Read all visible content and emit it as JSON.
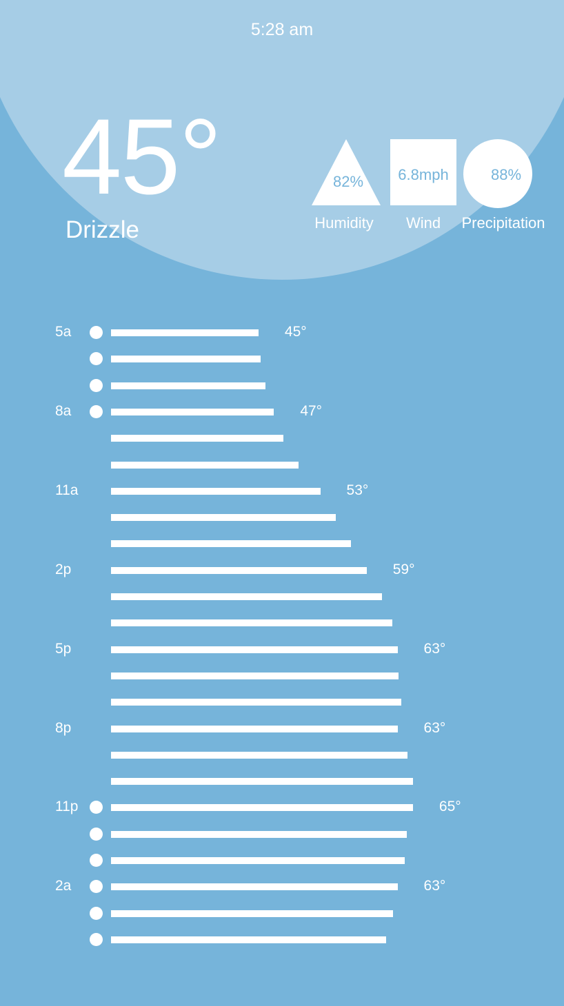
{
  "header": {
    "time": "5:28 am"
  },
  "current": {
    "temperature": "45°",
    "condition": "Drizzle"
  },
  "stats": {
    "humidity": {
      "value": "82%",
      "label": "Humidity",
      "shape": "triangle"
    },
    "wind": {
      "value": "6.8mph",
      "label": "Wind",
      "shape": "square"
    },
    "precipitation": {
      "value": "88%",
      "label": "Precipitation",
      "shape": "circle"
    }
  },
  "colors": {
    "background": "#76b4da",
    "arc": "#a6cde6",
    "foreground": "#ffffff"
  },
  "chart_data": {
    "type": "bar",
    "orientation": "horizontal",
    "temp_min": 25.9,
    "temp_max": 65.3,
    "hours": [
      {
        "hour": "5a",
        "temp": 45,
        "temp_label": "45°",
        "rain": true
      },
      {
        "hour": "",
        "temp": 45.3,
        "temp_label": "",
        "rain": true
      },
      {
        "hour": "",
        "temp": 45.9,
        "temp_label": "",
        "rain": true
      },
      {
        "hour": "8a",
        "temp": 47,
        "temp_label": "47°",
        "rain": true
      },
      {
        "hour": "",
        "temp": 48.2,
        "temp_label": "",
        "rain": false
      },
      {
        "hour": "",
        "temp": 50.2,
        "temp_label": "",
        "rain": false
      },
      {
        "hour": "11a",
        "temp": 53,
        "temp_label": "53°",
        "rain": false
      },
      {
        "hour": "",
        "temp": 55,
        "temp_label": "",
        "rain": false
      },
      {
        "hour": "",
        "temp": 57,
        "temp_label": "",
        "rain": false
      },
      {
        "hour": "2p",
        "temp": 59,
        "temp_label": "59°",
        "rain": false
      },
      {
        "hour": "",
        "temp": 61,
        "temp_label": "",
        "rain": false
      },
      {
        "hour": "",
        "temp": 62.3,
        "temp_label": "",
        "rain": false
      },
      {
        "hour": "5p",
        "temp": 63,
        "temp_label": "63°",
        "rain": false
      },
      {
        "hour": "",
        "temp": 63.1,
        "temp_label": "",
        "rain": false
      },
      {
        "hour": "",
        "temp": 63.5,
        "temp_label": "",
        "rain": false
      },
      {
        "hour": "8p",
        "temp": 63,
        "temp_label": "63°",
        "rain": false
      },
      {
        "hour": "",
        "temp": 64.3,
        "temp_label": "",
        "rain": false
      },
      {
        "hour": "",
        "temp": 65,
        "temp_label": "",
        "rain": false
      },
      {
        "hour": "11p",
        "temp": 65,
        "temp_label": "65°",
        "rain": true
      },
      {
        "hour": "",
        "temp": 64.2,
        "temp_label": "",
        "rain": true
      },
      {
        "hour": "",
        "temp": 63.9,
        "temp_label": "",
        "rain": true
      },
      {
        "hour": "2a",
        "temp": 63,
        "temp_label": "63°",
        "rain": true
      },
      {
        "hour": "",
        "temp": 62.4,
        "temp_label": "",
        "rain": true
      },
      {
        "hour": "",
        "temp": 61.5,
        "temp_label": "",
        "rain": true
      }
    ]
  }
}
